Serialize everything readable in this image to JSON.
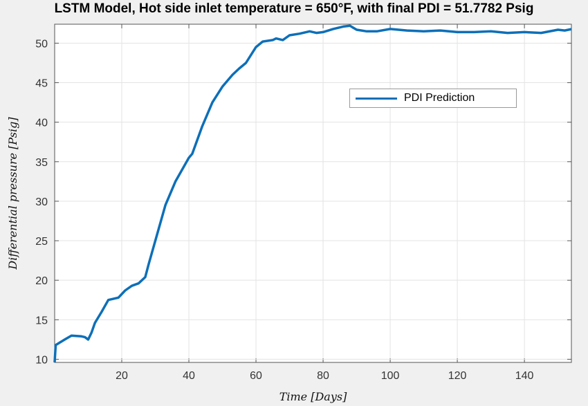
{
  "chart_data": {
    "type": "line",
    "title": "LSTM Model, Hot side inlet temperature = 650°F, with final PDI = 51.7782 Psig",
    "xlabel": "Time [Days]",
    "ylabel": "Differential pressure [Psig]",
    "xlim": [
      0,
      154
    ],
    "ylim": [
      9.6,
      52.4
    ],
    "xticks": [
      20,
      40,
      60,
      80,
      100,
      120,
      140
    ],
    "yticks": [
      10,
      15,
      20,
      25,
      30,
      35,
      40,
      45,
      50
    ],
    "grid": true,
    "legend_placement": "upper-right-inside",
    "series": [
      {
        "name": "PDI Prediction",
        "color": "#0d6fb8",
        "x": [
          0,
          0.3,
          3,
          5,
          8,
          9,
          10,
          11,
          12,
          14,
          16,
          19,
          21,
          23,
          25,
          27,
          28,
          30,
          33,
          36,
          40,
          41,
          44,
          47,
          50,
          53,
          55,
          57,
          60,
          62,
          65,
          66,
          68,
          70,
          73,
          76,
          78,
          80,
          83,
          86,
          88,
          90,
          93,
          96,
          100,
          105,
          110,
          115,
          120,
          125,
          130,
          135,
          140,
          145,
          150,
          152,
          154
        ],
        "values": [
          9.6,
          11.8,
          12.5,
          13,
          12.9,
          12.8,
          12.5,
          13.4,
          14.6,
          16,
          17.5,
          17.8,
          18.7,
          19.3,
          19.6,
          20.4,
          22,
          25,
          29.5,
          32.5,
          35.5,
          36,
          39.5,
          42.5,
          44.5,
          46,
          46.8,
          47.5,
          49.5,
          50.2,
          50.4,
          50.6,
          50.4,
          51,
          51.2,
          51.5,
          51.3,
          51.4,
          51.8,
          52.1,
          52.2,
          51.7,
          51.5,
          51.5,
          51.8,
          51.6,
          51.5,
          51.6,
          51.4,
          51.4,
          51.5,
          51.3,
          51.4,
          51.3,
          51.7,
          51.6,
          51.78
        ]
      }
    ]
  }
}
